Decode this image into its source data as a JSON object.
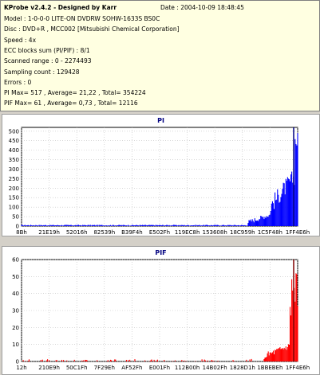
{
  "header": {
    "app_title": "KProbe v2.4.2 - Designed by Karr",
    "date": "Date : 2004-10-09 18:48:45",
    "lines": [
      "Model : 1-0-0-0 LITE-ON DVDRW SOHW-1633S BS0C",
      "Disc : DVD+R , MCC002 [Mitsubishi Chemical Corporation]",
      "Speed : 4x",
      "ECC blocks sum (PI/PIF) : 8/1",
      "Scanned range : 0 - 2274493",
      "Sampling count : 129428",
      "Errors : 0",
      "PI Max= 517 , Average= 21,22 , Total= 354224",
      "PIF Max= 61 , Average= 0,73 , Total= 12116"
    ]
  },
  "chart_data": [
    {
      "type": "bar",
      "title": "PI",
      "ylim": [
        0,
        520
      ],
      "yticks": [
        0,
        50,
        100,
        150,
        200,
        250,
        300,
        350,
        400,
        450,
        500
      ],
      "xtick_labels": [
        "8Bh",
        "21E19h",
        "52016h",
        "82539h",
        "B39F4h",
        "E502Fh",
        "119EC8h",
        "153608h",
        "18C959h",
        "1C5F48h",
        "1FF4E6h"
      ],
      "grid": true,
      "bar_color": "#0000ff",
      "marker_color": "#000080"
    },
    {
      "type": "bar",
      "title": "PIF",
      "ylim": [
        0,
        60
      ],
      "yticks": [
        0,
        10,
        20,
        30,
        40,
        50,
        60
      ],
      "xtick_labels": [
        "12h",
        "210E9h",
        "50C1Fh",
        "7F29Eh",
        "AF52Fh",
        "E001Fh",
        "112B00h",
        "14B02Fh",
        "1828D1h",
        "1BBEBEh",
        "1FF4E6h"
      ],
      "grid": true,
      "bar_color": "#ff0000",
      "marker_color": "#800000"
    }
  ]
}
